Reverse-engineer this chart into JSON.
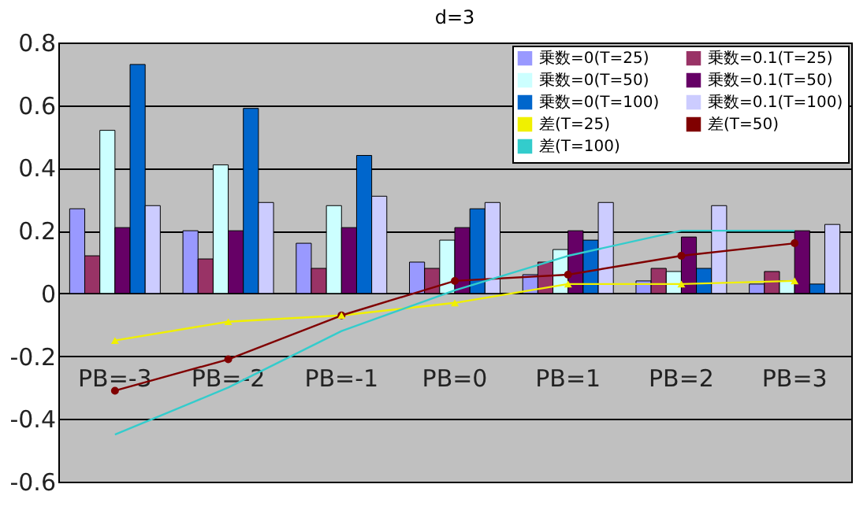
{
  "chart_data": {
    "type": "bar",
    "title": "d=3",
    "categories": [
      "PB=-3",
      "PB=-2",
      "PB=-1",
      "PB=0",
      "PB=1",
      "PB=2",
      "PB=3"
    ],
    "series": [
      {
        "name": "乗数=0(T=25)",
        "color": "#9999ff",
        "values": [
          0.27,
          0.2,
          0.16,
          0.1,
          0.06,
          0.04,
          0.03
        ]
      },
      {
        "name": "乗数=0.1(T=25)",
        "color": "#993366",
        "values": [
          0.12,
          0.11,
          0.08,
          0.08,
          0.1,
          0.08,
          0.07
        ]
      },
      {
        "name": "乗数=0(T=50)",
        "color": "#ccffff",
        "values": [
          0.52,
          0.41,
          0.28,
          0.17,
          0.14,
          0.07,
          0.04
        ]
      },
      {
        "name": "乗数=0.1(T=50)",
        "color": "#660066",
        "values": [
          0.21,
          0.2,
          0.21,
          0.21,
          0.2,
          0.18,
          0.2
        ]
      },
      {
        "name": "乗数=0(T=100)",
        "color": "#0066cc",
        "values": [
          0.73,
          0.59,
          0.44,
          0.27,
          0.17,
          0.08,
          0.03
        ]
      },
      {
        "name": "乗数=0.1(T=100)",
        "color": "#ccccff",
        "values": [
          0.28,
          0.29,
          0.31,
          0.29,
          0.29,
          0.28,
          0.22
        ]
      },
      {
        "name": "差(T=25)",
        "color": "#f0f000",
        "type": "line",
        "marker": "triangle",
        "values": [
          -0.15,
          -0.09,
          -0.07,
          -0.03,
          0.03,
          0.03,
          0.04
        ]
      },
      {
        "name": "差(T=50)",
        "color": "#800000",
        "type": "line",
        "marker": "circle",
        "values": [
          -0.31,
          -0.21,
          -0.07,
          0.04,
          0.06,
          0.12,
          0.16
        ]
      },
      {
        "name": "差(T=100)",
        "color": "#33cccc",
        "type": "line",
        "marker": "none",
        "values": [
          -0.45,
          -0.3,
          -0.12,
          0.01,
          0.12,
          0.2,
          0.2
        ]
      }
    ],
    "ylim": [
      -0.6,
      0.8
    ],
    "yticks": [
      -0.6,
      -0.4,
      -0.2,
      0,
      0.2,
      0.4,
      0.6,
      0.8
    ],
    "grid": "y",
    "legend": "top right"
  }
}
